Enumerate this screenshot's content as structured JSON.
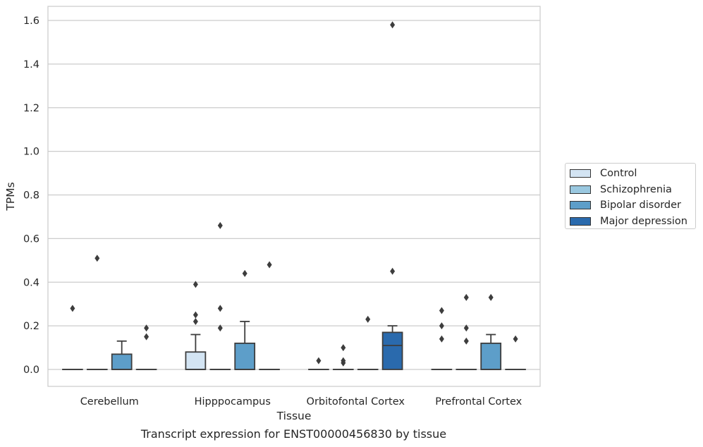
{
  "chart_data": {
    "type": "box",
    "ylabel": "TPMs",
    "xlabel": "Tissue",
    "ylim": [
      -0.08,
      1.66
    ],
    "yticks": [
      "0.0",
      "0.2",
      "0.4",
      "0.6",
      "0.8",
      "1.0",
      "1.2",
      "1.4",
      "1.6"
    ],
    "grid": true,
    "legend_position": "right",
    "categories": [
      "Cerebellum",
      "Hipppocampus",
      "Orbitofontal Cortex",
      "Prefrontal Cortex"
    ],
    "series": [
      {
        "name": "Control",
        "color": "#d3e4f3",
        "boxes": [
          {
            "q1": 0,
            "median": 0,
            "q3": 0,
            "whisker_low": 0,
            "whisker_high": 0,
            "outliers": [
              0.28
            ]
          },
          {
            "q1": 0,
            "median": 0,
            "q3": 0.08,
            "whisker_low": 0,
            "whisker_high": 0.16,
            "outliers": [
              0.22,
              0.25,
              0.39
            ]
          },
          {
            "q1": 0,
            "median": 0,
            "q3": 0,
            "whisker_low": 0,
            "whisker_high": 0,
            "outliers": [
              0.04
            ]
          },
          {
            "q1": 0,
            "median": 0,
            "q3": 0,
            "whisker_low": 0,
            "whisker_high": 0,
            "outliers": [
              0.14,
              0.2,
              0.27
            ]
          }
        ]
      },
      {
        "name": "Schizophrenia",
        "color": "#9ac8e0",
        "boxes": [
          {
            "q1": 0,
            "median": 0,
            "q3": 0,
            "whisker_low": 0,
            "whisker_high": 0,
            "outliers": [
              0.51
            ]
          },
          {
            "q1": 0,
            "median": 0,
            "q3": 0,
            "whisker_low": 0,
            "whisker_high": 0,
            "outliers": [
              0.19,
              0.28,
              0.66
            ]
          },
          {
            "q1": 0,
            "median": 0,
            "q3": 0,
            "whisker_low": 0,
            "whisker_high": 0,
            "outliers": [
              0.03,
              0.04,
              0.1
            ]
          },
          {
            "q1": 0,
            "median": 0,
            "q3": 0,
            "whisker_low": 0,
            "whisker_high": 0,
            "outliers": [
              0.13,
              0.19,
              0.33
            ]
          }
        ]
      },
      {
        "name": "Bipolar disorder",
        "color": "#5d9ec9",
        "boxes": [
          {
            "q1": 0,
            "median": 0,
            "q3": 0.07,
            "whisker_low": 0,
            "whisker_high": 0.13,
            "outliers": []
          },
          {
            "q1": 0,
            "median": 0,
            "q3": 0.12,
            "whisker_low": 0,
            "whisker_high": 0.22,
            "outliers": [
              0.44
            ]
          },
          {
            "q1": 0,
            "median": 0,
            "q3": 0,
            "whisker_low": 0,
            "whisker_high": 0,
            "outliers": [
              0.23
            ]
          },
          {
            "q1": 0,
            "median": 0,
            "q3": 0.12,
            "whisker_low": 0,
            "whisker_high": 0.16,
            "outliers": [
              0.33
            ]
          }
        ]
      },
      {
        "name": "Major depression",
        "color": "#2a6aad",
        "boxes": [
          {
            "q1": 0,
            "median": 0,
            "q3": 0,
            "whisker_low": 0,
            "whisker_high": 0,
            "outliers": [
              0.15,
              0.19
            ]
          },
          {
            "q1": 0,
            "median": 0,
            "q3": 0,
            "whisker_low": 0,
            "whisker_high": 0,
            "outliers": [
              0.48
            ]
          },
          {
            "q1": 0,
            "median": 0.11,
            "q3": 0.17,
            "whisker_low": 0,
            "whisker_high": 0.2,
            "outliers": [
              0.45,
              1.58
            ]
          },
          {
            "q1": 0,
            "median": 0,
            "q3": 0,
            "whisker_low": 0,
            "whisker_high": 0,
            "outliers": [
              0.14
            ]
          }
        ]
      }
    ]
  },
  "caption": "Transcript expression for ENST00000456830 by tissue"
}
